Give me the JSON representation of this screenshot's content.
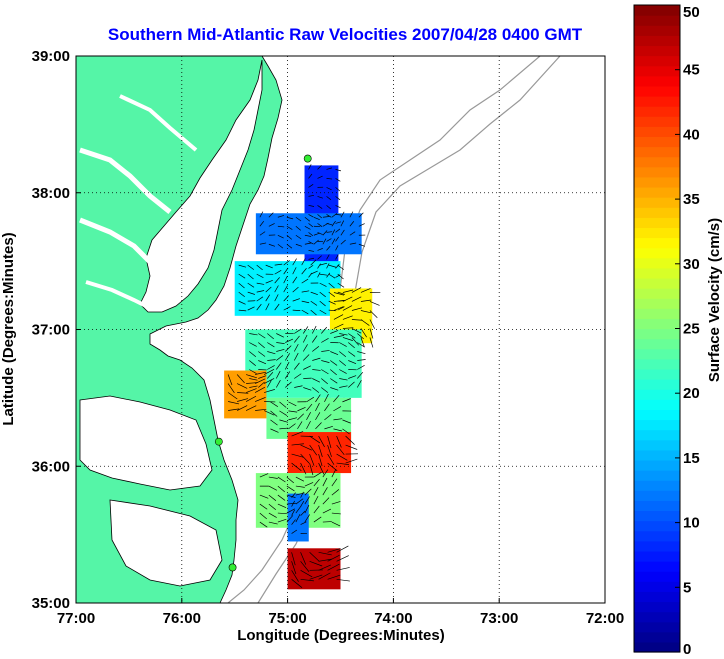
{
  "chart_data": {
    "type": "heatmap",
    "title": "Southern Mid-Atlantic Raw Velocities 2007/04/28 0400 GMT",
    "xlabel": "Longitude (Degrees:Minutes)",
    "ylabel": "Latitude (Degrees:Minutes)",
    "colorbar_label": "Surface Velocity (cm/s)",
    "xlim": [
      -77,
      -72
    ],
    "ylim": [
      35,
      39
    ],
    "x_ticks": [
      {
        "value": -77,
        "label": "77:00"
      },
      {
        "value": -76,
        "label": "76:00"
      },
      {
        "value": -75,
        "label": "75:00"
      },
      {
        "value": -74,
        "label": "74:00"
      },
      {
        "value": -73,
        "label": "73:00"
      },
      {
        "value": -72,
        "label": "72:00"
      }
    ],
    "y_ticks": [
      {
        "value": 35,
        "label": "35:00"
      },
      {
        "value": 36,
        "label": "36:00"
      },
      {
        "value": 37,
        "label": "37:00"
      },
      {
        "value": 38,
        "label": "38:00"
      },
      {
        "value": 39,
        "label": "39:00"
      }
    ],
    "colorbar": {
      "range": [
        0,
        50
      ],
      "ticks": [
        0,
        5,
        10,
        15,
        20,
        25,
        30,
        35,
        40,
        45,
        50
      ],
      "colormap": "jet"
    },
    "grid": "dotted",
    "stations": [
      {
        "lon": -74.81,
        "lat": 38.25
      },
      {
        "lon": -75.65,
        "lat": 36.18
      },
      {
        "lon": -75.52,
        "lat": 35.26
      }
    ],
    "velocity_regions": [
      {
        "lon": [
          -74.84,
          -74.52
        ],
        "lat": [
          37.35,
          38.2
        ],
        "speed": 8
      },
      {
        "lon": [
          -75.3,
          -74.3
        ],
        "lat": [
          37.55,
          37.85
        ],
        "speed": 12
      },
      {
        "lon": [
          -75.5,
          -74.5
        ],
        "lat": [
          37.1,
          37.5
        ],
        "speed": 18
      },
      {
        "lon": [
          -74.6,
          -74.2
        ],
        "lat": [
          36.9,
          37.3
        ],
        "speed": 32
      },
      {
        "lon": [
          -75.4,
          -74.3
        ],
        "lat": [
          36.5,
          37.0
        ],
        "speed": 22
      },
      {
        "lon": [
          -75.6,
          -75.2
        ],
        "lat": [
          36.35,
          36.7
        ],
        "speed": 36
      },
      {
        "lon": [
          -75.2,
          -74.4
        ],
        "lat": [
          36.2,
          36.5
        ],
        "speed": 24
      },
      {
        "lon": [
          -75.0,
          -74.4
        ],
        "lat": [
          35.95,
          36.25
        ],
        "speed": 42
      },
      {
        "lon": [
          -75.3,
          -74.5
        ],
        "lat": [
          35.55,
          35.95
        ],
        "speed": 25
      },
      {
        "lon": [
          -75.0,
          -74.8
        ],
        "lat": [
          35.45,
          35.8
        ],
        "speed": 12
      },
      {
        "lon": [
          -75.0,
          -74.5
        ],
        "lat": [
          35.1,
          35.4
        ],
        "speed": 47
      }
    ]
  }
}
